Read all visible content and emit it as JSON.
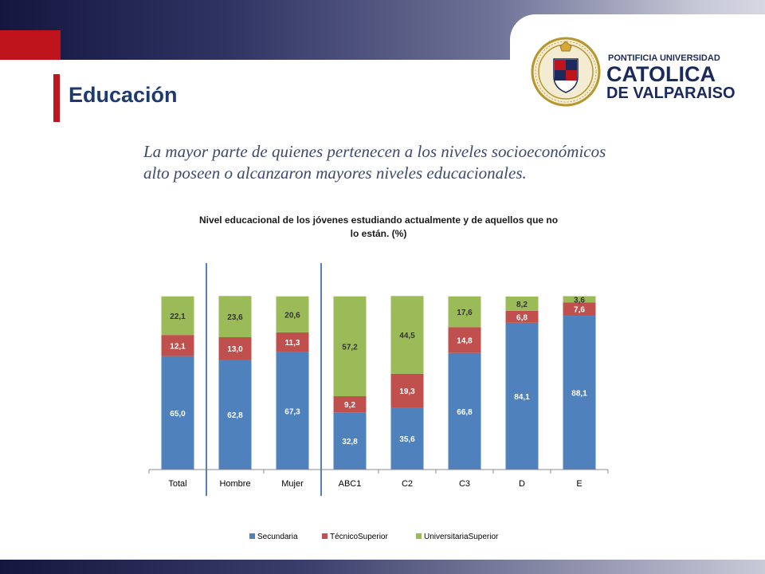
{
  "slide": {
    "title": "Educación",
    "subtitle_lines": [
      "La mayor parte de quienes pertenecen a los niveles socioeconómicos",
      "alto poseen o alcanzaron mayores niveles educacionales."
    ]
  },
  "logo": {
    "line1": "PONTIFICIA UNIVERSIDAD",
    "line2": "CATOLICA",
    "line3": "DE VALPARAISO"
  },
  "colors": {
    "brand_navy": "#15163f",
    "brand_red": "#c0141c",
    "title_blue": "#1f3a6e",
    "secundaria": "#4f81bd",
    "tecnico": "#c0504d",
    "universitaria": "#9bbb59",
    "divider": "#4f81bd"
  },
  "chart_data": {
    "type": "bar",
    "stacked": true,
    "title_lines": [
      "Nivel educacional de los jóvenes estudiando actualmente y de aquellos que no",
      "lo están. (%)"
    ],
    "categories": [
      "Total",
      "Hombre",
      "Mujer",
      "ABC1",
      "C2",
      "C3",
      "D",
      "E"
    ],
    "series": [
      {
        "name": "Secundaria",
        "values": [
          65.0,
          62.8,
          67.3,
          32.8,
          35.6,
          66.8,
          84.1,
          88.1
        ],
        "labels": [
          "65,0",
          "62,8",
          "67,3",
          "32,8",
          "35,6",
          "66,8",
          "84,1",
          "88,1"
        ]
      },
      {
        "name": "TécnicoSuperior",
        "values": [
          12.1,
          13.0,
          11.3,
          9.2,
          19.3,
          14.8,
          6.8,
          7.6
        ],
        "labels": [
          "12,1",
          "13,0",
          "11,3",
          "9,2",
          "19,3",
          "14,8",
          "6,8",
          "7,6"
        ]
      },
      {
        "name": "UniversitariaSuperior",
        "values": [
          22.1,
          23.6,
          20.6,
          57.2,
          44.5,
          17.6,
          8.2,
          3.6
        ],
        "labels": [
          "22,1",
          "23,6",
          "20,6",
          "57,2",
          "44,5",
          "17,6",
          "8,2",
          "3,6"
        ]
      }
    ],
    "ylim": [
      0,
      100
    ],
    "xlabel": "",
    "ylabel": "",
    "grid": false,
    "group_dividers_after": [
      "Total",
      "Mujer"
    ],
    "legend_position": "bottom"
  }
}
